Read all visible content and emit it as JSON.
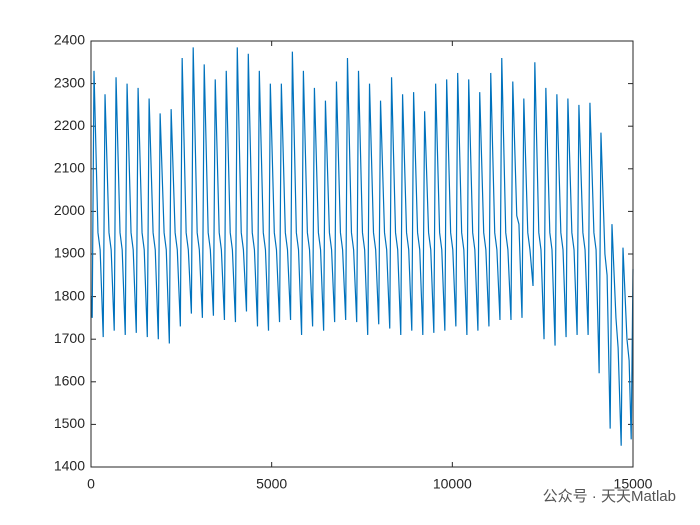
{
  "chart_data": {
    "type": "line",
    "color": "#0072bd",
    "xlim": [
      0,
      15000
    ],
    "ylim": [
      1400,
      2400
    ],
    "xticks": [
      0,
      5000,
      10000,
      15000
    ],
    "yticks": [
      1400,
      1500,
      1600,
      1700,
      1800,
      1900,
      2000,
      2100,
      2200,
      2300,
      2400
    ],
    "x": [
      0,
      33,
      83,
      193,
      253,
      338,
      388,
      498,
      558,
      643,
      693,
      803,
      863,
      948,
      998,
      1108,
      1168,
      1253,
      1303,
      1413,
      1473,
      1558,
      1608,
      1718,
      1778,
      1863,
      1913,
      2023,
      2083,
      2168,
      2218,
      2328,
      2388,
      2473,
      2523,
      2633,
      2693,
      2778,
      2828,
      2938,
      2998,
      3083,
      3133,
      3243,
      3303,
      3388,
      3438,
      3548,
      3608,
      3693,
      3743,
      3853,
      3913,
      3998,
      4048,
      4158,
      4218,
      4303,
      4353,
      4463,
      4523,
      4608,
      4658,
      4768,
      4828,
      4913,
      4963,
      5073,
      5133,
      5218,
      5268,
      5378,
      5438,
      5523,
      5573,
      5683,
      5743,
      5828,
      5878,
      5988,
      6048,
      6133,
      6183,
      6293,
      6353,
      6438,
      6488,
      6598,
      6658,
      6743,
      6793,
      6903,
      6963,
      7048,
      7098,
      7208,
      7268,
      7353,
      7403,
      7513,
      7573,
      7658,
      7708,
      7818,
      7878,
      7963,
      8013,
      8123,
      8183,
      8268,
      8318,
      8428,
      8488,
      8573,
      8623,
      8733,
      8793,
      8878,
      8928,
      9038,
      9098,
      9183,
      9233,
      9343,
      9403,
      9488,
      9538,
      9648,
      9708,
      9793,
      9843,
      9953,
      10013,
      10098,
      10148,
      10258,
      10318,
      10403,
      10453,
      10563,
      10623,
      10708,
      10758,
      10868,
      10928,
      11013,
      11063,
      11173,
      11233,
      11318,
      11368,
      11478,
      11538,
      11623,
      11673,
      11783,
      11843,
      11928,
      11978,
      12088,
      12148,
      12233,
      12283,
      12393,
      12453,
      12538,
      12588,
      12698,
      12758,
      12843,
      12893,
      13003,
      13063,
      13148,
      13198,
      13308,
      13368,
      13453,
      13503,
      13613,
      13673,
      13758,
      13808,
      13918,
      13978,
      14063,
      14113,
      14223,
      14283,
      14368,
      14418,
      14528,
      14588,
      14673,
      14723,
      14833,
      14893,
      14950,
      15000
    ],
    "values": [
      1800,
      1750,
      2330,
      1950,
      1910,
      1705,
      2275,
      1950,
      1910,
      1720,
      2315,
      1950,
      1910,
      1710,
      2300,
      1950,
      1910,
      1715,
      2290,
      1950,
      1910,
      1705,
      2265,
      1950,
      1910,
      1700,
      2230,
      1950,
      1910,
      1690,
      2240,
      1950,
      1910,
      1730,
      2360,
      1950,
      1910,
      1760,
      2385,
      1950,
      1910,
      1750,
      2345,
      1950,
      1910,
      1755,
      2310,
      1950,
      1910,
      1745,
      2330,
      1950,
      1910,
      1740,
      2385,
      1950,
      1910,
      1765,
      2370,
      1950,
      1910,
      1730,
      2330,
      1950,
      1910,
      1720,
      2300,
      1950,
      1910,
      1740,
      2300,
      1950,
      1910,
      1745,
      2375,
      1950,
      1910,
      1710,
      2330,
      1950,
      1910,
      1730,
      2290,
      1950,
      1910,
      1720,
      2260,
      1950,
      1910,
      1740,
      2305,
      1950,
      1910,
      1745,
      2360,
      1950,
      1910,
      1740,
      2330,
      1950,
      1910,
      1710,
      2300,
      1950,
      1910,
      1735,
      2260,
      1950,
      1910,
      1725,
      2315,
      1950,
      1910,
      1710,
      2275,
      1950,
      1910,
      1720,
      2280,
      1950,
      1910,
      1710,
      2235,
      1950,
      1910,
      1715,
      2300,
      1950,
      1910,
      1720,
      2310,
      1950,
      1910,
      1730,
      2325,
      1950,
      1910,
      1710,
      2310,
      1950,
      1910,
      1720,
      2280,
      1950,
      1910,
      1730,
      2325,
      1950,
      1910,
      1745,
      2360,
      1950,
      1910,
      1745,
      2305,
      1990,
      1970,
      1750,
      2265,
      1950,
      1910,
      1825,
      2350,
      1950,
      1910,
      1700,
      2290,
      1950,
      1910,
      1685,
      2275,
      1950,
      1910,
      1705,
      2265,
      1950,
      1910,
      1710,
      2250,
      1950,
      1910,
      1710,
      2255,
      1950,
      1910,
      1620,
      2185,
      1900,
      1850,
      1490,
      1970,
      1750,
      1680,
      1450,
      1915,
      1700,
      1650,
      1465,
      1865
    ],
    "watermark": "公众号 · 天天Matlab"
  }
}
